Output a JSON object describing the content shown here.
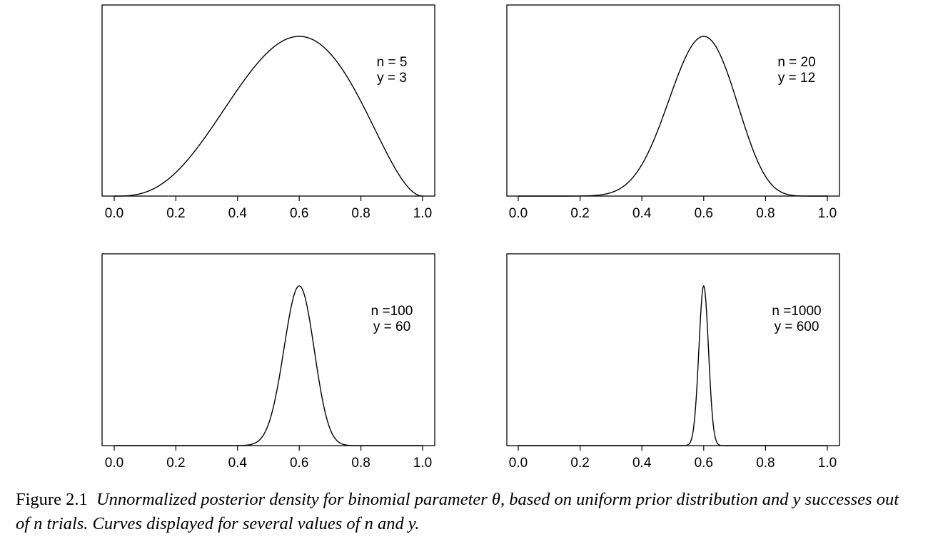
{
  "chart_data": [
    {
      "type": "line",
      "n": 5,
      "y": 3,
      "annotation": [
        "n = 5",
        "y = 3"
      ],
      "x_ticks": [
        "0.0",
        "0.2",
        "0.4",
        "0.6",
        "0.8",
        "1.0"
      ],
      "xlim": [
        0,
        1
      ],
      "y_axis_labels": false,
      "series": [
        {
          "function": "theta^3 * (1-theta)^2",
          "mode": 0.6
        }
      ]
    },
    {
      "type": "line",
      "n": 20,
      "y": 12,
      "annotation": [
        "n = 20",
        "y = 12"
      ],
      "x_ticks": [
        "0.0",
        "0.2",
        "0.4",
        "0.6",
        "0.8",
        "1.0"
      ],
      "xlim": [
        0,
        1
      ],
      "y_axis_labels": false,
      "series": [
        {
          "function": "theta^12 * (1-theta)^8",
          "mode": 0.6
        }
      ]
    },
    {
      "type": "line",
      "n": 100,
      "y": 60,
      "annotation": [
        "n =100",
        "y = 60"
      ],
      "x_ticks": [
        "0.0",
        "0.2",
        "0.4",
        "0.6",
        "0.8",
        "1.0"
      ],
      "xlim": [
        0,
        1
      ],
      "y_axis_labels": false,
      "series": [
        {
          "function": "theta^60 * (1-theta)^40",
          "mode": 0.6
        }
      ]
    },
    {
      "type": "line",
      "n": 1000,
      "y": 600,
      "annotation": [
        "n =1000",
        "y = 600"
      ],
      "x_ticks": [
        "0.0",
        "0.2",
        "0.4",
        "0.6",
        "0.8",
        "1.0"
      ],
      "xlim": [
        0,
        1
      ],
      "y_axis_labels": false,
      "series": [
        {
          "function": "theta^600 * (1-theta)^400",
          "mode": 0.6
        }
      ]
    }
  ],
  "caption": {
    "label": "Figure 2.1",
    "text": "Unnormalized posterior density for binomial parameter θ, based on uniform prior distribution and y successes out of n trials. Curves displayed for several values of n and y."
  }
}
